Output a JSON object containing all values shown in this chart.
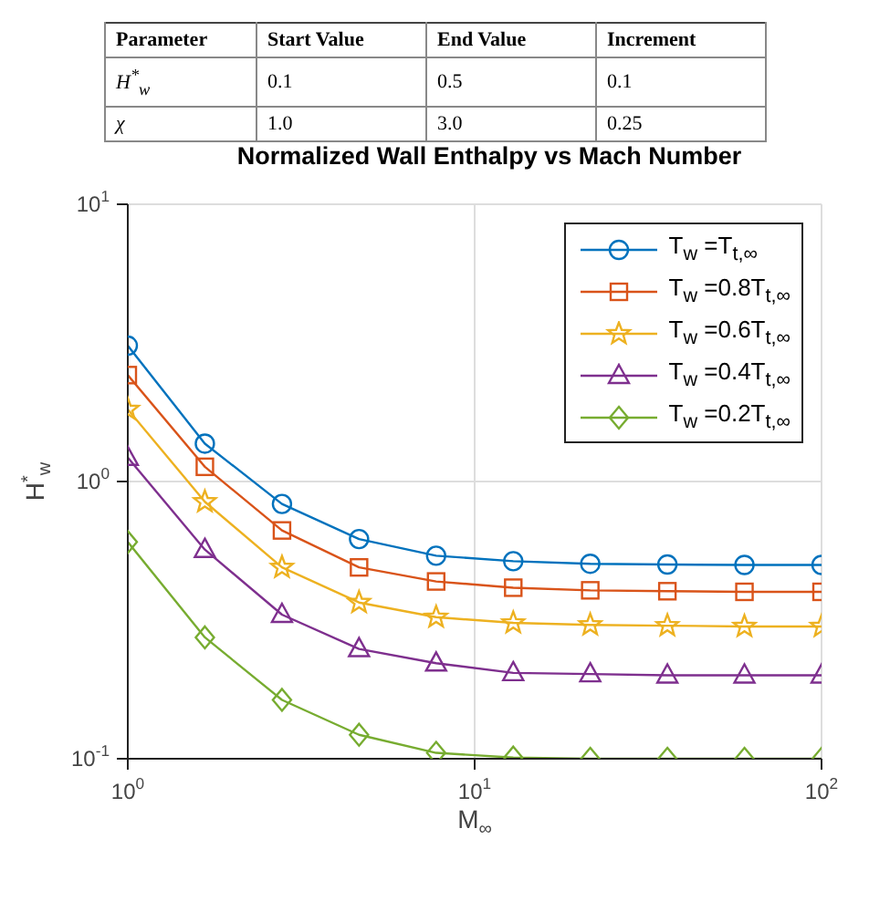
{
  "chart_data": [
    {
      "type": "other",
      "annotations": [
        "Parameter",
        "Start Value",
        "End Value",
        "Increment",
        "H$^{*}$$_{w}$",
        "0.1",
        "0.5",
        "0.1",
        "χ",
        "1.0",
        "3.0",
        "0.25"
      ]
    },
    {
      "type": "line",
      "title": "Normalized Wall Enthalpy vs Mach Number",
      "xlabel": "M$_{∞}$",
      "ylabel": "H$^{*}$$_{w}$",
      "log": "xy",
      "grid": true,
      "legend": "top right",
      "line_style": "solid",
      "x": [
        1,
        1.668,
        2.783,
        4.642,
        7.743,
        12.92,
        21.54,
        35.94,
        59.95,
        100
      ],
      "xlim": [
        1,
        100
      ],
      "xticks": [
        {
          "value": 1,
          "label": "10$^{0}$"
        },
        {
          "value": 10,
          "label": "10$^{1}$"
        },
        {
          "value": 100,
          "label": "10$^{2}$"
        }
      ],
      "ylim": [
        0.1,
        10
      ],
      "yticks": [
        {
          "value": 0.1,
          "label": "10$^{-1}$"
        },
        {
          "value": 1,
          "label": "10$^{0}$"
        },
        {
          "value": 10,
          "label": "10$^{1}$"
        }
      ],
      "series": [
        {
          "name": "T$_{w}$ =T$_{t,∞}$",
          "color": "#0072bd",
          "marker": "circle",
          "values": [
            3.09,
            1.37,
            0.83,
            0.62,
            0.54,
            0.516,
            0.505,
            0.502,
            0.5,
            0.5
          ]
        },
        {
          "name": "T$_{w}$ =0.8T$_{t,∞}$",
          "color": "#d95319",
          "marker": "square",
          "values": [
            2.42,
            1.13,
            0.666,
            0.49,
            0.436,
            0.414,
            0.405,
            0.402,
            0.4,
            0.4
          ]
        },
        {
          "name": "T$_{w}$ =0.6T$_{t,∞}$",
          "color": "#edb120",
          "marker": "star",
          "values": [
            1.82,
            0.845,
            0.49,
            0.366,
            0.324,
            0.309,
            0.304,
            0.302,
            0.3,
            0.3
          ]
        },
        {
          "name": "T$_{w}$ =0.4T$_{t,∞}$",
          "color": "#7e2f8e",
          "marker": "triangle",
          "values": [
            1.22,
            0.568,
            0.331,
            0.249,
            0.221,
            0.204,
            0.202,
            0.2,
            0.2,
            0.2
          ]
        },
        {
          "name": "T$_{w}$ =0.2T$_{t,∞}$",
          "color": "#77ac30",
          "marker": "diamond",
          "values": [
            0.605,
            0.274,
            0.163,
            0.122,
            0.105,
            0.101,
            0.1,
            0.1,
            0.1,
            0.1
          ]
        }
      ]
    }
  ]
}
